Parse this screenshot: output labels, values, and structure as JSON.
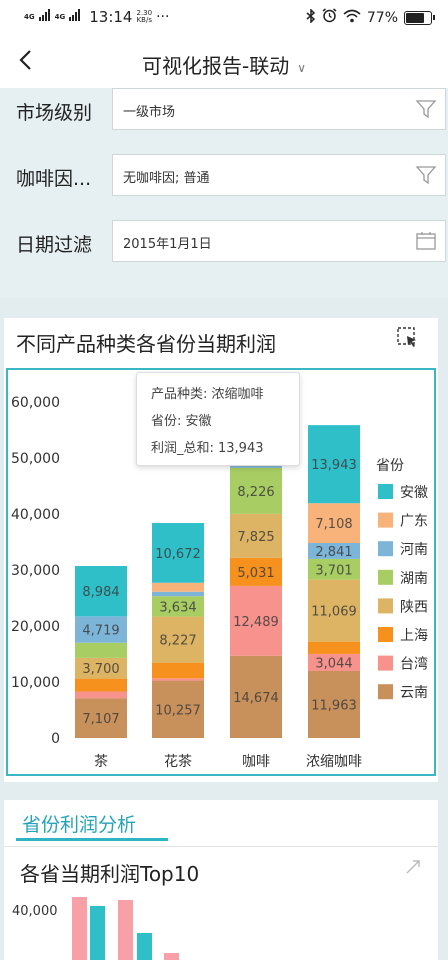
{
  "status": {
    "signal1": "4G",
    "signal2": "4G",
    "time": "13:14",
    "speed_value": "2.30",
    "speed_unit": "KB/s",
    "more": "···",
    "battery": "77%",
    "battery_level": 0.77
  },
  "header": {
    "back_icon": "chevron-left-icon",
    "title": "可视化报告-联动",
    "dropdown_icon": "chevron-down-icon"
  },
  "filters": [
    {
      "label": "市场级别",
      "value": "一级市场",
      "icon": "filter-icon"
    },
    {
      "label": "咖啡因...",
      "value": "无咖啡因; 普通",
      "icon": "filter-icon"
    },
    {
      "label": "日期过滤",
      "value": "2015年1月1日",
      "icon": "calendar-icon"
    }
  ],
  "chart_card": {
    "title": "不同产品种类各省份当期利润",
    "select_icon": "box-select-icon"
  },
  "chart_data": {
    "type": "bar",
    "stacked": true,
    "categories": [
      "茶",
      "花茶",
      "咖啡",
      "浓缩咖啡"
    ],
    "ylim": [
      0,
      60000
    ],
    "yticks": [
      "0",
      "10,000",
      "20,000",
      "30,000",
      "40,000",
      "50,000",
      "60,000"
    ],
    "legend_title": "省份",
    "legend_position": "right",
    "series": [
      {
        "name": "云南",
        "color": "#c8915c",
        "values": [
          7107,
          10257,
          14674,
          11963
        ],
        "labels": [
          "7,107",
          "10,257",
          "14,674",
          "11,963"
        ]
      },
      {
        "name": "台湾",
        "color": "#f7928c",
        "values": [
          1200,
          400,
          12489,
          3044
        ],
        "labels": [
          "",
          "",
          "12,489",
          "3,044"
        ]
      },
      {
        "name": "上海",
        "color": "#f5911c",
        "values": [
          2300,
          2800,
          5031,
          2200
        ],
        "labels": [
          "",
          "",
          "5,031",
          ""
        ]
      },
      {
        "name": "陕西",
        "color": "#dcb463",
        "values": [
          3700,
          8227,
          7825,
          11069
        ],
        "labels": [
          "3,700",
          "8,227",
          "7,825",
          "11,069"
        ]
      },
      {
        "name": "湖南",
        "color": "#a8cd63",
        "values": [
          2700,
          3634,
          8226,
          3701
        ],
        "labels": [
          "",
          "3,634",
          "8,226",
          "3,701"
        ]
      },
      {
        "name": "河南",
        "color": "#7db5d9",
        "values": [
          4719,
          800,
          900,
          2841
        ],
        "labels": [
          "4,719",
          "",
          "",
          "2,841"
        ]
      },
      {
        "name": "广东",
        "color": "#f8b37a",
        "values": [
          0,
          1600,
          0,
          7108
        ],
        "labels": [
          "",
          "",
          "",
          "7,108"
        ]
      },
      {
        "name": "安徽",
        "color": "#2fbfc9",
        "values": [
          8984,
          10672,
          0,
          13943
        ],
        "labels": [
          "8,984",
          "10,672",
          "",
          "13,943"
        ]
      }
    ]
  },
  "tooltip": {
    "row1": "产品种类:  浓缩咖啡",
    "row2": "省份:  安徽",
    "row3": "利润_总和:  13,943"
  },
  "section2": {
    "tab": "省份利润分析",
    "title": "各省当期利润Top10",
    "expand_icon": "expand-icon",
    "ytick": "40,000",
    "bars": [
      {
        "color": "#f7a0a8",
        "value": 42000
      },
      {
        "color": "#2fbfc9",
        "value": 36000
      },
      {
        "color": "#f7a0a8",
        "value": 40000
      },
      {
        "color": "#2fbfc9",
        "value": 18000
      },
      {
        "color": "#f7a0a8",
        "value": 5000
      }
    ]
  }
}
